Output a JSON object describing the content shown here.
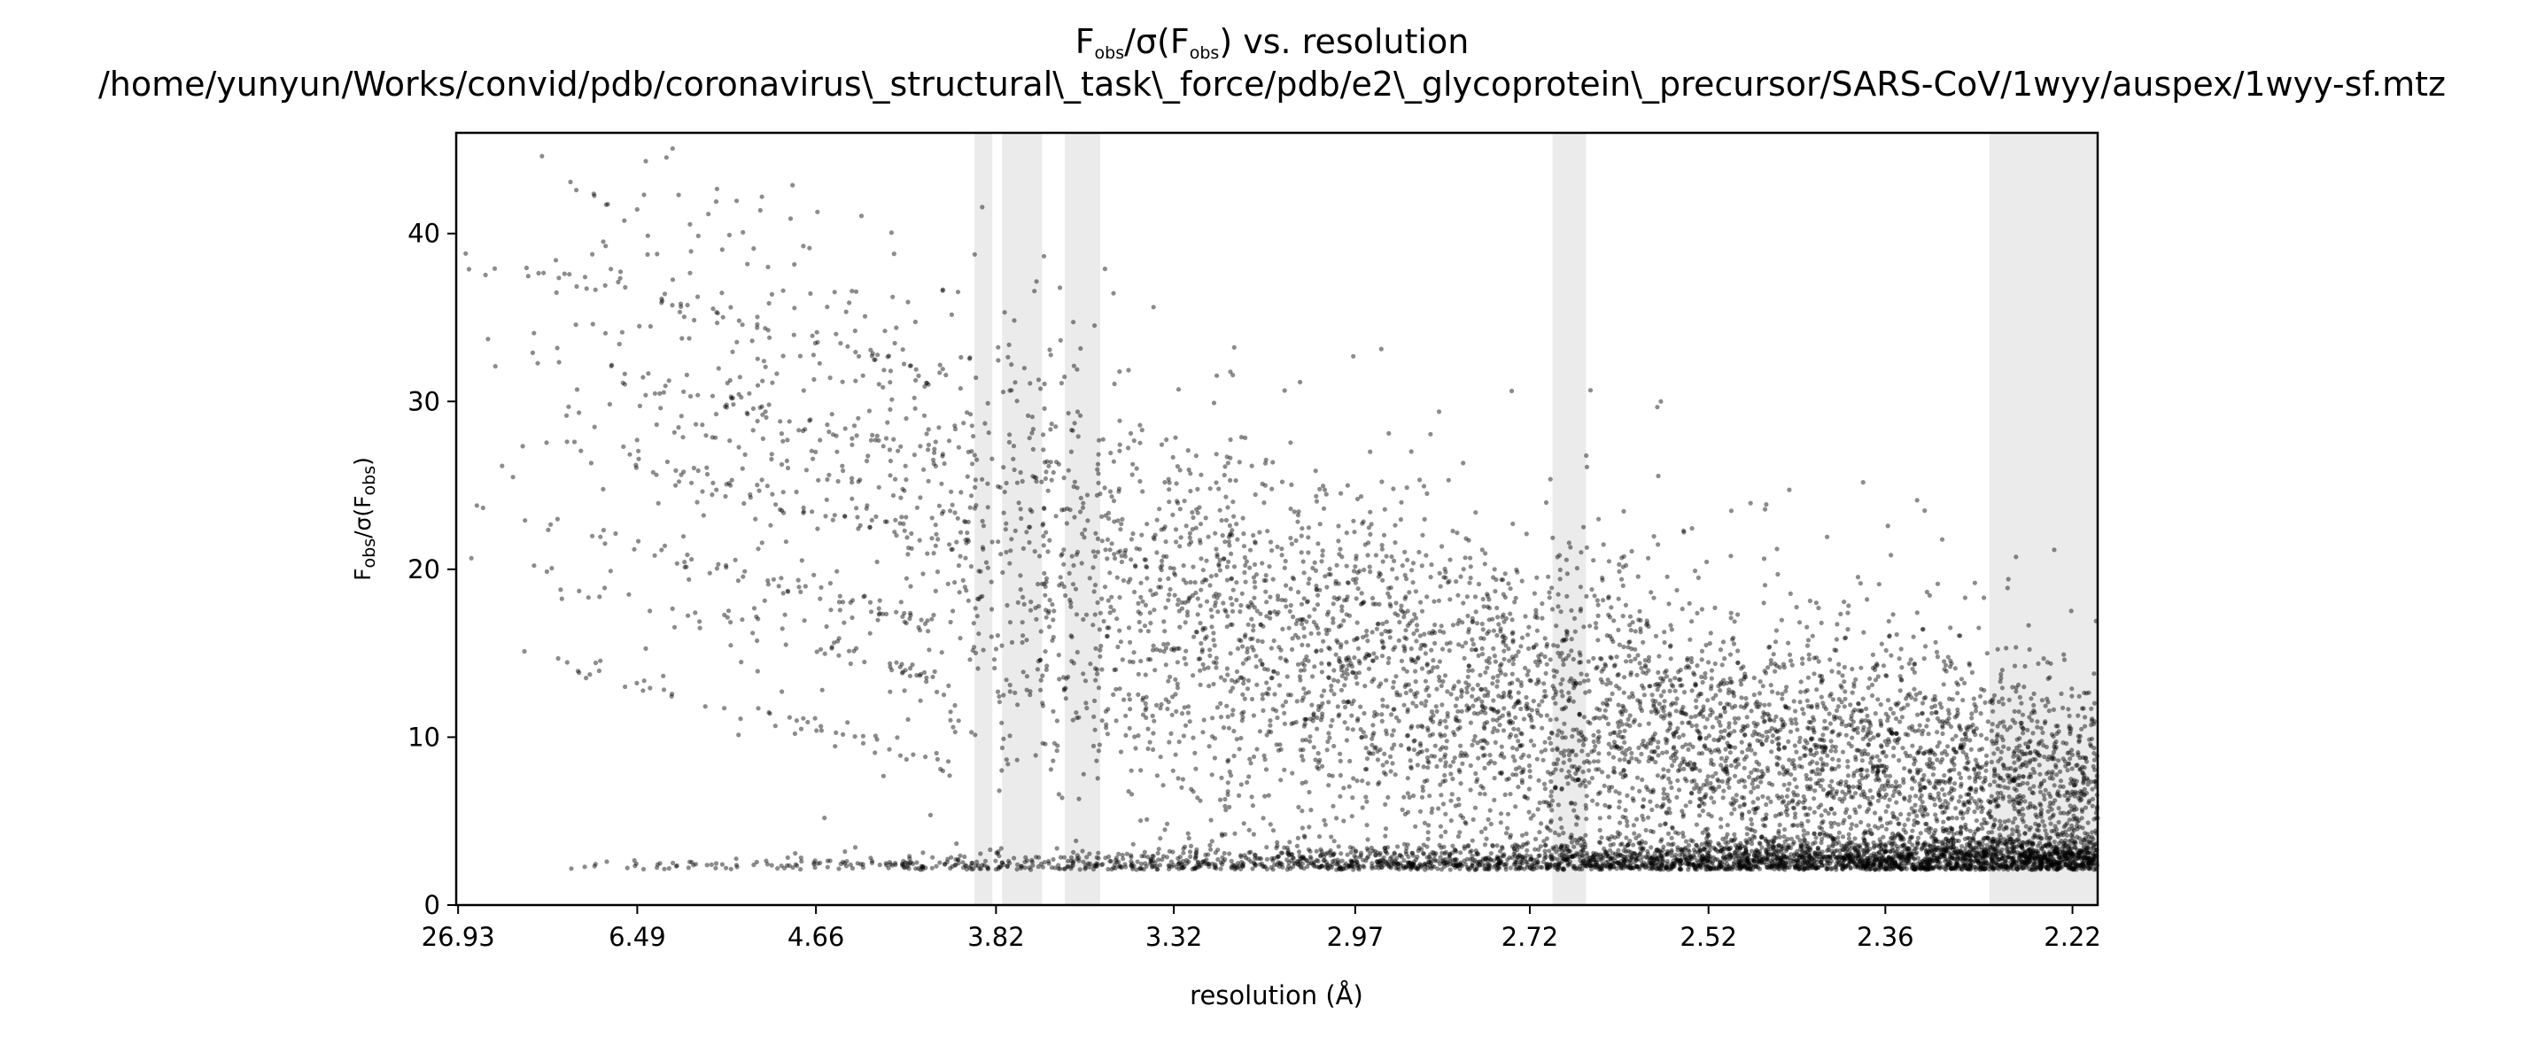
{
  "chart_data": {
    "type": "scatter",
    "title": {
      "line1": {
        "main": "F",
        "sub1": "obs",
        "mid": "/σ(F",
        "sub2": "obs",
        "end": ") vs. resolution"
      },
      "line2": "/home/yunyun/Works/convid/pdb/coronavirus\\_structural\\_task\\_force/pdb/e2\\_glycoprotein\\_precursor/SARS-CoV/1wyy/auspex/1wyy-sf.mtz"
    },
    "xlabel": "resolution (Å)",
    "ylabel": {
      "main": "F",
      "sub1": "obs",
      "mid": "/σ(F",
      "sub2": "obs",
      "end": ")"
    },
    "x_axis": {
      "scale": "inverse-square resolution (1/d²), displayed as d in Å",
      "range_angstrom": [
        29.6,
        2.203
      ],
      "ticks_angstrom": [
        26.93,
        6.49,
        4.66,
        3.82,
        3.32,
        2.97,
        2.72,
        2.52,
        2.36,
        2.22
      ],
      "tick_labels": [
        "26.93",
        "6.49",
        "4.66",
        "3.82",
        "3.32",
        "2.97",
        "2.72",
        "2.52",
        "2.36",
        "2.22"
      ]
    },
    "y_axis": {
      "range": [
        0,
        46
      ],
      "ticks": [
        0,
        10,
        20,
        30,
        40
      ],
      "tick_labels": [
        "0",
        "10",
        "20",
        "30",
        "40"
      ]
    },
    "ice_ring_bands_angstrom": [
      [
        3.897,
        3.833
      ],
      [
        3.799,
        3.669
      ],
      [
        3.601,
        3.502
      ],
      [
        2.692,
        2.652
      ],
      [
        2.279,
        2.203
      ]
    ],
    "series": [
      {
        "marker_color": "#000000",
        "marker_opacity": 0.45,
        "point_count": 9000,
        "trend_points": [
          [
            26.93,
            39
          ],
          [
            6.49,
            37
          ],
          [
            4.66,
            33
          ],
          [
            3.82,
            27
          ],
          [
            3.32,
            20
          ],
          [
            2.97,
            14
          ],
          [
            2.72,
            10
          ],
          [
            2.52,
            7
          ],
          [
            2.36,
            5
          ],
          [
            2.22,
            4
          ]
        ],
        "note": "dense stripes near y≈39, 34, 29, 24, 21, 16 at low resolution; dense floor near y≈2.5 at high resolution"
      }
    ],
    "band_color": "#ebebeb",
    "grid": false,
    "legend": "none"
  }
}
